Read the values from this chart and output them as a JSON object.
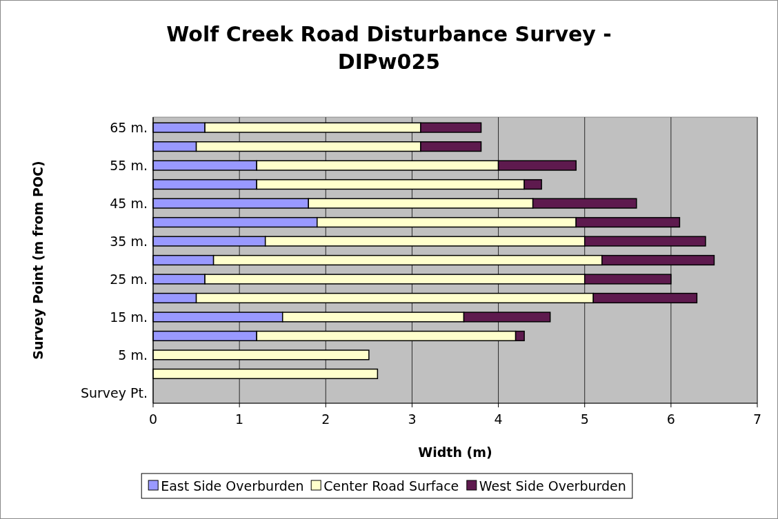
{
  "chart_data": {
    "type": "bar",
    "orientation": "horizontal",
    "stacked": true,
    "title": "Wolf Creek Road Disturbance Survey - DIPw025",
    "xlabel": "Width (m)",
    "ylabel": "Survey Point (m from POC)",
    "categories": [
      "65 m.",
      null,
      "55 m.",
      null,
      "45 m.",
      null,
      "35 m.",
      null,
      "25 m.",
      null,
      "15 m.",
      null,
      "5 m.",
      null,
      "Survey Pt."
    ],
    "series": [
      {
        "name": "East Side Overburden",
        "color": "#9999ff",
        "values": [
          0.6,
          0.5,
          1.2,
          1.2,
          1.8,
          1.9,
          1.3,
          0.7,
          0.6,
          0.5,
          1.5,
          1.2,
          0,
          0,
          0
        ]
      },
      {
        "name": "Center Road Surface",
        "color": "#ffffcc",
        "values": [
          2.5,
          2.6,
          2.8,
          3.1,
          2.6,
          3.0,
          3.7,
          4.5,
          4.4,
          4.6,
          2.1,
          3.0,
          2.5,
          2.6,
          0
        ]
      },
      {
        "name": "West Side Overburden",
        "color": "#5e1a4e",
        "values": [
          0.7,
          0.7,
          0.9,
          0.2,
          1.2,
          1.2,
          1.4,
          1.3,
          1.0,
          1.2,
          1.0,
          0.1,
          0,
          0,
          0
        ]
      }
    ],
    "xlim": [
      0,
      7
    ],
    "xticks": [
      0,
      1,
      2,
      3,
      4,
      5,
      6,
      7
    ],
    "grid": "x",
    "legend": "bottom"
  }
}
